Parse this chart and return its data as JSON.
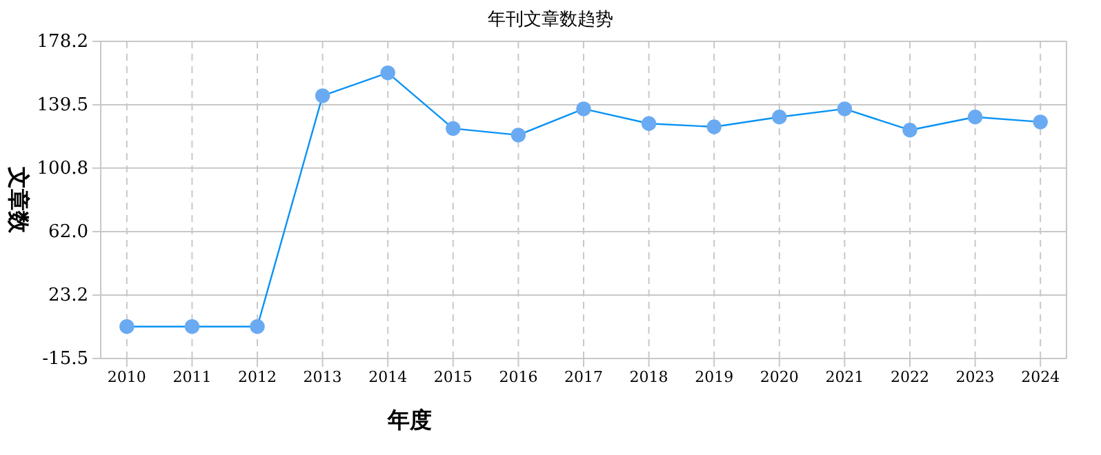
{
  "chart_data": {
    "type": "line",
    "title": "年刊文章数趋势",
    "xlabel": "年度",
    "ylabel": "文章数",
    "categories": [
      "2010",
      "2011",
      "2012",
      "2013",
      "2014",
      "2015",
      "2016",
      "2017",
      "2018",
      "2019",
      "2020",
      "2021",
      "2022",
      "2023",
      "2024"
    ],
    "series": [
      {
        "color": "#0a93f5",
        "values": [
          4,
          4,
          4,
          145,
          159,
          125,
          121,
          137,
          128,
          126,
          132,
          137,
          124,
          132,
          129
        ]
      }
    ],
    "ylim": [
      -15.5,
      178.2
    ],
    "yticks": [
      -15.5,
      23.2,
      {
        "value": 62,
        "label": "62.0"
      },
      100.8,
      139.5,
      178.2
    ],
    "grid": true,
    "marker": "circle",
    "line_style": "solid"
  }
}
